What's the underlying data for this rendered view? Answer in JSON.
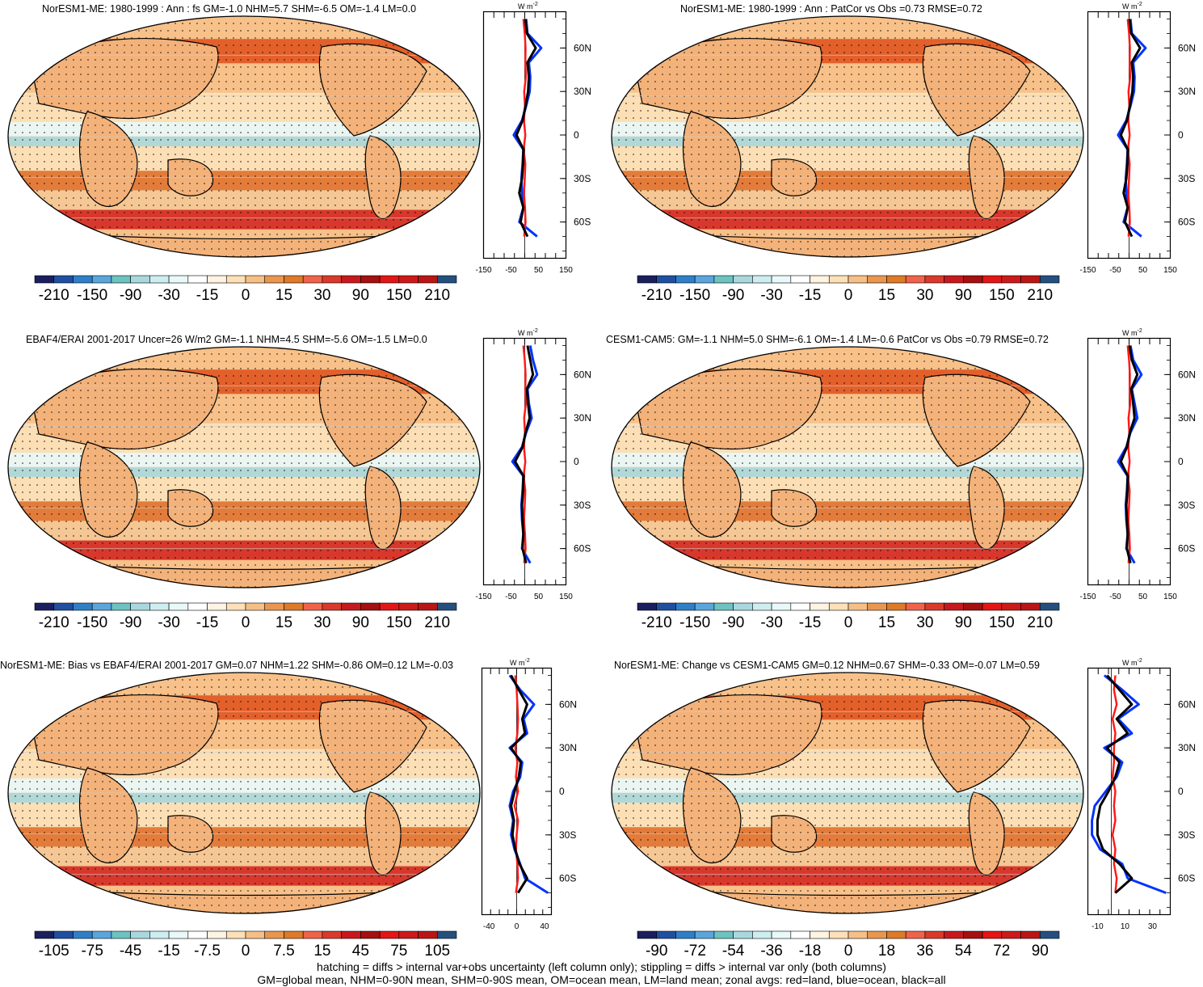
{
  "panels": [
    {
      "title": "NorESM1-ME: 1980-1999 : Ann : fs GM=-1.0 NHM=5.7 SHM=-6.5 OM=-1.4 LM=0.0",
      "colorbar_labels": [
        "-210",
        "-150",
        "-90",
        "-30",
        "-15",
        "0",
        "15",
        "30",
        "90",
        "150",
        "210"
      ],
      "zonal_xticks": [
        "-150",
        "-50",
        "50",
        "150"
      ],
      "zonal_xlim": [
        -150,
        150
      ]
    },
    {
      "title": "NorESM1-ME: 1980-1999 : Ann : PatCor vs Obs =0.73 RMSE=0.72",
      "colorbar_labels": [
        "-210",
        "-150",
        "-90",
        "-30",
        "-15",
        "0",
        "15",
        "30",
        "90",
        "150",
        "210"
      ],
      "zonal_xticks": [
        "-150",
        "-50",
        "50",
        "150"
      ],
      "zonal_xlim": [
        -150,
        150
      ]
    },
    {
      "title": "EBAF4/ERAI 2001-2017 Uncer=26 W/m2 GM=-1.1 NHM=4.5 SHM=-5.6 OM=-1.5 LM=0.0",
      "colorbar_labels": [
        "-210",
        "-150",
        "-90",
        "-30",
        "-15",
        "0",
        "15",
        "30",
        "90",
        "150",
        "210"
      ],
      "zonal_xticks": [
        "-150",
        "-50",
        "50",
        "150"
      ],
      "zonal_xlim": [
        -150,
        150
      ]
    },
    {
      "title": "CESM1-CAM5: GM=-1.1 NHM=5.0 SHM=-6.1 OM=-1.4 LM=-0.6 PatCor vs Obs =0.79 RMSE=0.72",
      "colorbar_labels": [
        "-210",
        "-150",
        "-90",
        "-30",
        "-15",
        "0",
        "15",
        "30",
        "90",
        "150",
        "210"
      ],
      "zonal_xticks": [
        "-150",
        "-50",
        "50",
        "150"
      ],
      "zonal_xlim": [
        -150,
        150
      ]
    },
    {
      "title": "NorESM1-ME: Bias vs EBAF4/ERAI 2001-2017 GM=0.07 NHM=1.22 SHM=-0.86 OM=0.12 LM=-0.03",
      "colorbar_labels": [
        "-105",
        "-75",
        "-45",
        "-15",
        "-7.5",
        "0",
        "7.5",
        "15",
        "45",
        "75",
        "105"
      ],
      "zonal_xticks": [
        "-40",
        "0",
        "40"
      ],
      "zonal_xlim": [
        -50,
        50
      ]
    },
    {
      "title": "NorESM1-ME: Change vs CESM1-CAM5 GM=0.12 NHM=0.67 SHM=-0.33 OM=-0.07 LM=0.59",
      "colorbar_labels": [
        "-90",
        "-72",
        "-54",
        "-36",
        "-18",
        "0",
        "18",
        "36",
        "54",
        "72",
        "90"
      ],
      "zonal_xticks": [
        "-10",
        "10",
        "30"
      ],
      "zonal_xlim": [
        -17,
        43
      ]
    }
  ],
  "zonal_unit": "W m",
  "zonal_unit_exp": "-2",
  "lat_labels": [
    "60N",
    "30N",
    "0",
    "30S",
    "60S"
  ],
  "colorbar_colors": [
    "#1a1f5e",
    "#1f4fa0",
    "#2f7fc8",
    "#5aa6dc",
    "#6cc3c1",
    "#a8d8dd",
    "#cdeef0",
    "#e9f8f9",
    "#ffffff",
    "#fff3e2",
    "#fde0b8",
    "#f6bf86",
    "#e9964f",
    "#de7a28",
    "#f0634a",
    "#d93a2b",
    "#c7191d",
    "#a51010",
    "#e41515",
    "#cc1a1a",
    "#ba1616",
    "#24507f"
  ],
  "line_colors": {
    "land": "#ff1a1a",
    "ocean": "#0033ff",
    "all": "#000000"
  },
  "footnote": {
    "line1": "hatching = diffs > internal var+obs uncertainty (left column only); stippling = diffs > internal var only (both columns)",
    "line2": "GM=global mean, NHM=0-90N mean, SHM=0-90S mean, OM=ocean mean, LM=land mean; zonal avgs: red=land, blue=ocean, black=all"
  },
  "chart_data": [
    {
      "type": "line",
      "title": "NorESM1-ME: 1980-1999 : Ann : fs GM=-1.0 NHM=5.7 SHM=-6.5 OM=-1.4 LM=0.0",
      "ylabel": "",
      "xlabel": "",
      "y": [
        80,
        70,
        60,
        50,
        40,
        30,
        20,
        10,
        0,
        -10,
        -20,
        -30,
        -40,
        -50,
        -60,
        -70
      ],
      "series": [
        {
          "name": "land",
          "values": [
            -5,
            0,
            3,
            2,
            4,
            -2,
            1,
            -3,
            2,
            -4,
            2,
            0,
            -3,
            1,
            3,
            -2
          ]
        },
        {
          "name": "ocean",
          "values": [
            5,
            10,
            60,
            15,
            20,
            18,
            5,
            -10,
            -40,
            -5,
            -8,
            -12,
            -10,
            -5,
            -20,
            45
          ]
        },
        {
          "name": "all",
          "values": [
            2,
            8,
            40,
            10,
            15,
            12,
            3,
            -8,
            -30,
            -5,
            -6,
            -10,
            -20,
            -5,
            -15,
            10
          ]
        }
      ],
      "xlim": [
        -150,
        150
      ]
    },
    {
      "type": "line",
      "title": "NorESM1-ME: 1980-1999 : Ann : PatCor vs Obs =0.73 RMSE=0.72",
      "ylabel": "",
      "xlabel": "",
      "y": [
        80,
        70,
        60,
        50,
        40,
        30,
        20,
        10,
        0,
        -10,
        -20,
        -30,
        -40,
        -50,
        -60,
        -70
      ],
      "series": [
        {
          "name": "land",
          "values": [
            -5,
            0,
            3,
            2,
            4,
            -2,
            1,
            -3,
            2,
            -4,
            2,
            0,
            -3,
            1,
            3,
            -2
          ]
        },
        {
          "name": "ocean",
          "values": [
            5,
            10,
            60,
            15,
            20,
            18,
            5,
            -10,
            -40,
            -5,
            -8,
            -12,
            -10,
            -5,
            -20,
            45
          ]
        },
        {
          "name": "all",
          "values": [
            2,
            8,
            40,
            10,
            15,
            12,
            3,
            -8,
            -30,
            -5,
            -6,
            -10,
            -20,
            -5,
            -15,
            10
          ]
        }
      ],
      "xlim": [
        -150,
        150
      ]
    },
    {
      "type": "line",
      "title": "EBAF4/ERAI 2001-2017 Uncer=26 W/m2 GM=-1.1 NHM=4.5 SHM=-5.6 OM=-1.5 LM=0.0",
      "ylabel": "",
      "xlabel": "",
      "y": [
        80,
        70,
        60,
        50,
        40,
        30,
        20,
        10,
        0,
        -10,
        -20,
        -30,
        -40,
        -50,
        -60,
        -70
      ],
      "series": [
        {
          "name": "land",
          "values": [
            -5,
            0,
            3,
            2,
            4,
            -2,
            1,
            -3,
            2,
            -4,
            2,
            0,
            -3,
            1,
            3,
            -2
          ]
        },
        {
          "name": "ocean",
          "values": [
            20,
            30,
            45,
            10,
            15,
            25,
            5,
            -10,
            -45,
            -5,
            -8,
            -12,
            -10,
            -5,
            -10,
            20
          ]
        },
        {
          "name": "all",
          "values": [
            10,
            20,
            30,
            8,
            12,
            18,
            3,
            -8,
            -35,
            -5,
            -6,
            -10,
            -8,
            -5,
            -8,
            5
          ]
        }
      ],
      "xlim": [
        -150,
        150
      ]
    },
    {
      "type": "line",
      "title": "CESM1-CAM5: GM=-1.1 NHM=5.0 SHM=-6.1 OM=-1.4 LM=-0.6 PatCor vs Obs =0.79 RMSE=0.72",
      "ylabel": "",
      "xlabel": "",
      "y": [
        80,
        70,
        60,
        50,
        40,
        30,
        20,
        10,
        0,
        -10,
        -20,
        -30,
        -40,
        -50,
        -60,
        -70
      ],
      "series": [
        {
          "name": "land",
          "values": [
            -5,
            0,
            3,
            2,
            4,
            -2,
            1,
            -3,
            2,
            -4,
            2,
            0,
            -3,
            1,
            3,
            -2
          ]
        },
        {
          "name": "ocean",
          "values": [
            5,
            15,
            45,
            10,
            20,
            30,
            5,
            -10,
            -40,
            -5,
            -8,
            -12,
            -10,
            -5,
            -10,
            20
          ]
        },
        {
          "name": "all",
          "values": [
            2,
            10,
            30,
            8,
            15,
            20,
            3,
            -8,
            -30,
            -5,
            -6,
            -10,
            -8,
            -5,
            -8,
            5
          ]
        }
      ],
      "xlim": [
        -150,
        150
      ]
    },
    {
      "type": "line",
      "title": "NorESM1-ME: Bias vs EBAF4/ERAI 2001-2017 GM=0.07 NHM=1.22 SHM=-0.86 OM=0.12 LM=-0.03",
      "ylabel": "",
      "xlabel": "",
      "y": [
        80,
        70,
        60,
        50,
        40,
        30,
        20,
        10,
        0,
        -10,
        -20,
        -30,
        -40,
        -50,
        -60,
        -70
      ],
      "series": [
        {
          "name": "land",
          "values": [
            -2,
            0,
            1,
            2,
            1,
            -2,
            1,
            -1,
            2,
            -3,
            2,
            0,
            -1,
            1,
            2,
            -1
          ]
        },
        {
          "name": "ocean",
          "values": [
            -10,
            5,
            25,
            10,
            15,
            -10,
            8,
            5,
            -5,
            -10,
            -5,
            -8,
            -3,
            5,
            12,
            45
          ]
        },
        {
          "name": "all",
          "values": [
            -8,
            3,
            15,
            8,
            12,
            -8,
            6,
            3,
            -3,
            -8,
            -4,
            -6,
            -2,
            4,
            15,
            2
          ]
        }
      ],
      "xlim": [
        -50,
        50
      ]
    },
    {
      "type": "line",
      "title": "NorESM1-ME: Change vs CESM1-CAM5 GM=0.12 NHM=0.67 SHM=-0.33 OM=-0.07 LM=0.59",
      "ylabel": "",
      "xlabel": "",
      "y": [
        80,
        70,
        60,
        50,
        40,
        30,
        20,
        10,
        0,
        -10,
        -20,
        -30,
        -40,
        -50,
        -60,
        -70
      ],
      "series": [
        {
          "name": "land",
          "values": [
            3,
            2,
            4,
            1,
            3,
            2,
            2,
            1,
            3,
            2,
            3,
            1,
            3,
            2,
            4,
            3
          ]
        },
        {
          "name": "ocean",
          "values": [
            -5,
            8,
            20,
            5,
            15,
            -5,
            8,
            4,
            -4,
            -12,
            -14,
            -14,
            -8,
            8,
            12,
            40
          ]
        },
        {
          "name": "all",
          "values": [
            -3,
            6,
            15,
            4,
            12,
            -3,
            6,
            3,
            -2,
            -8,
            -10,
            -10,
            -6,
            6,
            15,
            3
          ]
        }
      ],
      "xlim": [
        -17,
        43
      ]
    }
  ]
}
